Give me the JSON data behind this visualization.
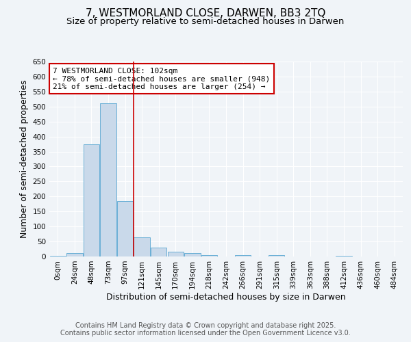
{
  "title": "7, WESTMORLAND CLOSE, DARWEN, BB3 2TQ",
  "subtitle": "Size of property relative to semi-detached houses in Darwen",
  "xlabel": "Distribution of semi-detached houses by size in Darwen",
  "ylabel": "Number of semi-detached properties",
  "bin_labels": [
    "0sqm",
    "24sqm",
    "48sqm",
    "73sqm",
    "97sqm",
    "121sqm",
    "145sqm",
    "170sqm",
    "194sqm",
    "218sqm",
    "242sqm",
    "266sqm",
    "291sqm",
    "315sqm",
    "339sqm",
    "363sqm",
    "388sqm",
    "412sqm",
    "436sqm",
    "460sqm",
    "484sqm"
  ],
  "bar_values": [
    3,
    12,
    375,
    510,
    185,
    65,
    30,
    17,
    11,
    5,
    0,
    4,
    0,
    4,
    0,
    0,
    0,
    3,
    0,
    0,
    0
  ],
  "bar_color": "#c9d9ea",
  "bar_edge_color": "#6aafd6",
  "vline_x_index": 4,
  "vline_color": "#cc0000",
  "annotation_text": "7 WESTMORLAND CLOSE: 102sqm\n← 78% of semi-detached houses are smaller (948)\n21% of semi-detached houses are larger (254) →",
  "annotation_box_facecolor": "#ffffff",
  "annotation_box_edgecolor": "#cc0000",
  "ylim": [
    0,
    650
  ],
  "yticks": [
    0,
    50,
    100,
    150,
    200,
    250,
    300,
    350,
    400,
    450,
    500,
    550,
    600,
    650
  ],
  "footer_text": "Contains HM Land Registry data © Crown copyright and database right 2025.\nContains public sector information licensed under the Open Government Licence v3.0.",
  "fig_bg_color": "#f0f4f8",
  "plot_bg_color": "#f0f4f8",
  "grid_color": "#ffffff",
  "title_fontsize": 11,
  "subtitle_fontsize": 9.5,
  "axis_label_fontsize": 9,
  "tick_fontsize": 7.5,
  "annotation_fontsize": 8,
  "footer_fontsize": 7
}
